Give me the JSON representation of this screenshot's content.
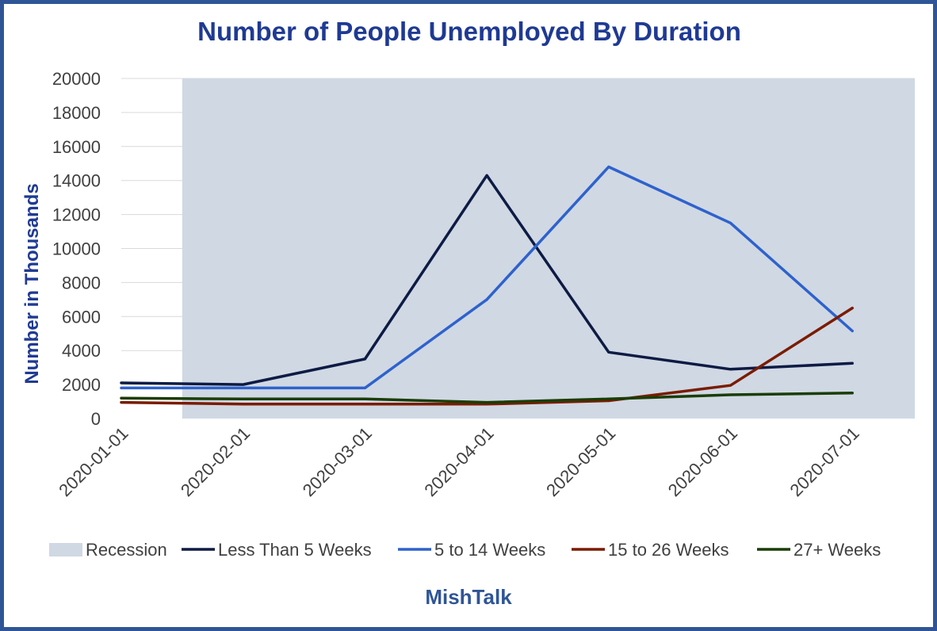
{
  "chart_data": {
    "type": "line",
    "title": "Number of People Unemployed By Duration",
    "ylabel": "Number in Thousands",
    "xlabel": "",
    "ylim": [
      0,
      20000
    ],
    "yticks": [
      0,
      2000,
      4000,
      6000,
      8000,
      10000,
      12000,
      14000,
      16000,
      18000,
      20000
    ],
    "categories": [
      "2020-01-01",
      "2020-02-01",
      "2020-03-01",
      "2020-04-01",
      "2020-05-01",
      "2020-06-01",
      "2020-07-01"
    ],
    "recession": {
      "name": "Recession",
      "start": "2020-02-01",
      "end": "2020-07-01",
      "color": "#d0d8e4"
    },
    "series": [
      {
        "name": "Less Than 5 Weeks",
        "color": "#0d1b44",
        "values": [
          2100,
          2000,
          3500,
          14300,
          3900,
          2900,
          3250
        ]
      },
      {
        "name": "5 to 14 Weeks",
        "color": "#2e62cc",
        "values": [
          1800,
          1800,
          1800,
          7000,
          14800,
          11500,
          5150
        ]
      },
      {
        "name": "15 to 26 Weeks",
        "color": "#7a1c00",
        "values": [
          950,
          850,
          850,
          850,
          1050,
          1950,
          6500
        ]
      },
      {
        "name": "27+ Weeks",
        "color": "#1a3d05",
        "values": [
          1200,
          1150,
          1150,
          950,
          1150,
          1400,
          1500
        ]
      }
    ],
    "legend_position": "bottom",
    "grid": true
  },
  "credit": "MishTalk",
  "colors": {
    "frame": "#2f5597",
    "title": "#1f3a93",
    "grid": "#d9d9d9"
  }
}
